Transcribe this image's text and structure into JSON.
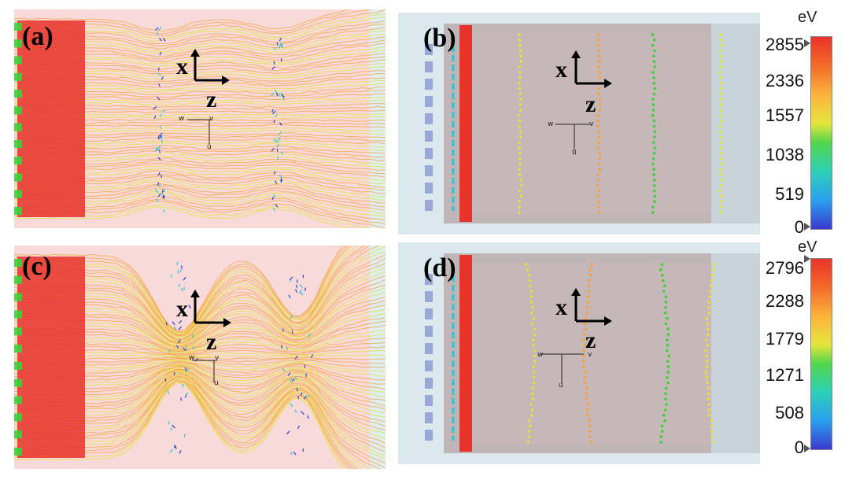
{
  "panels": {
    "a": {
      "label": "(a)"
    },
    "b": {
      "label": "(b)"
    },
    "c": {
      "label": "(c)"
    },
    "d": {
      "label": "(d)"
    }
  },
  "axes": {
    "x": "x",
    "z": "z",
    "u": "u",
    "v": "v",
    "w": "w"
  },
  "colorbar_top": {
    "unit": "eV",
    "ticks": [
      "2855",
      "2336",
      "1557",
      "1038",
      "519",
      "0"
    ]
  },
  "colorbar_bottom": {
    "unit": "eV",
    "ticks": [
      "2796",
      "2288",
      "1779",
      "1271",
      "508",
      "0"
    ]
  },
  "colors": {
    "hot": "#e8332a",
    "orange": "#f6a23a",
    "yellow": "#e2e23a",
    "green": "#3cd23c",
    "cyan": "#28c8d0",
    "blue": "#2a40e0",
    "pink_bg": "#f9dada",
    "gray_box": "#bdb0b0"
  }
}
